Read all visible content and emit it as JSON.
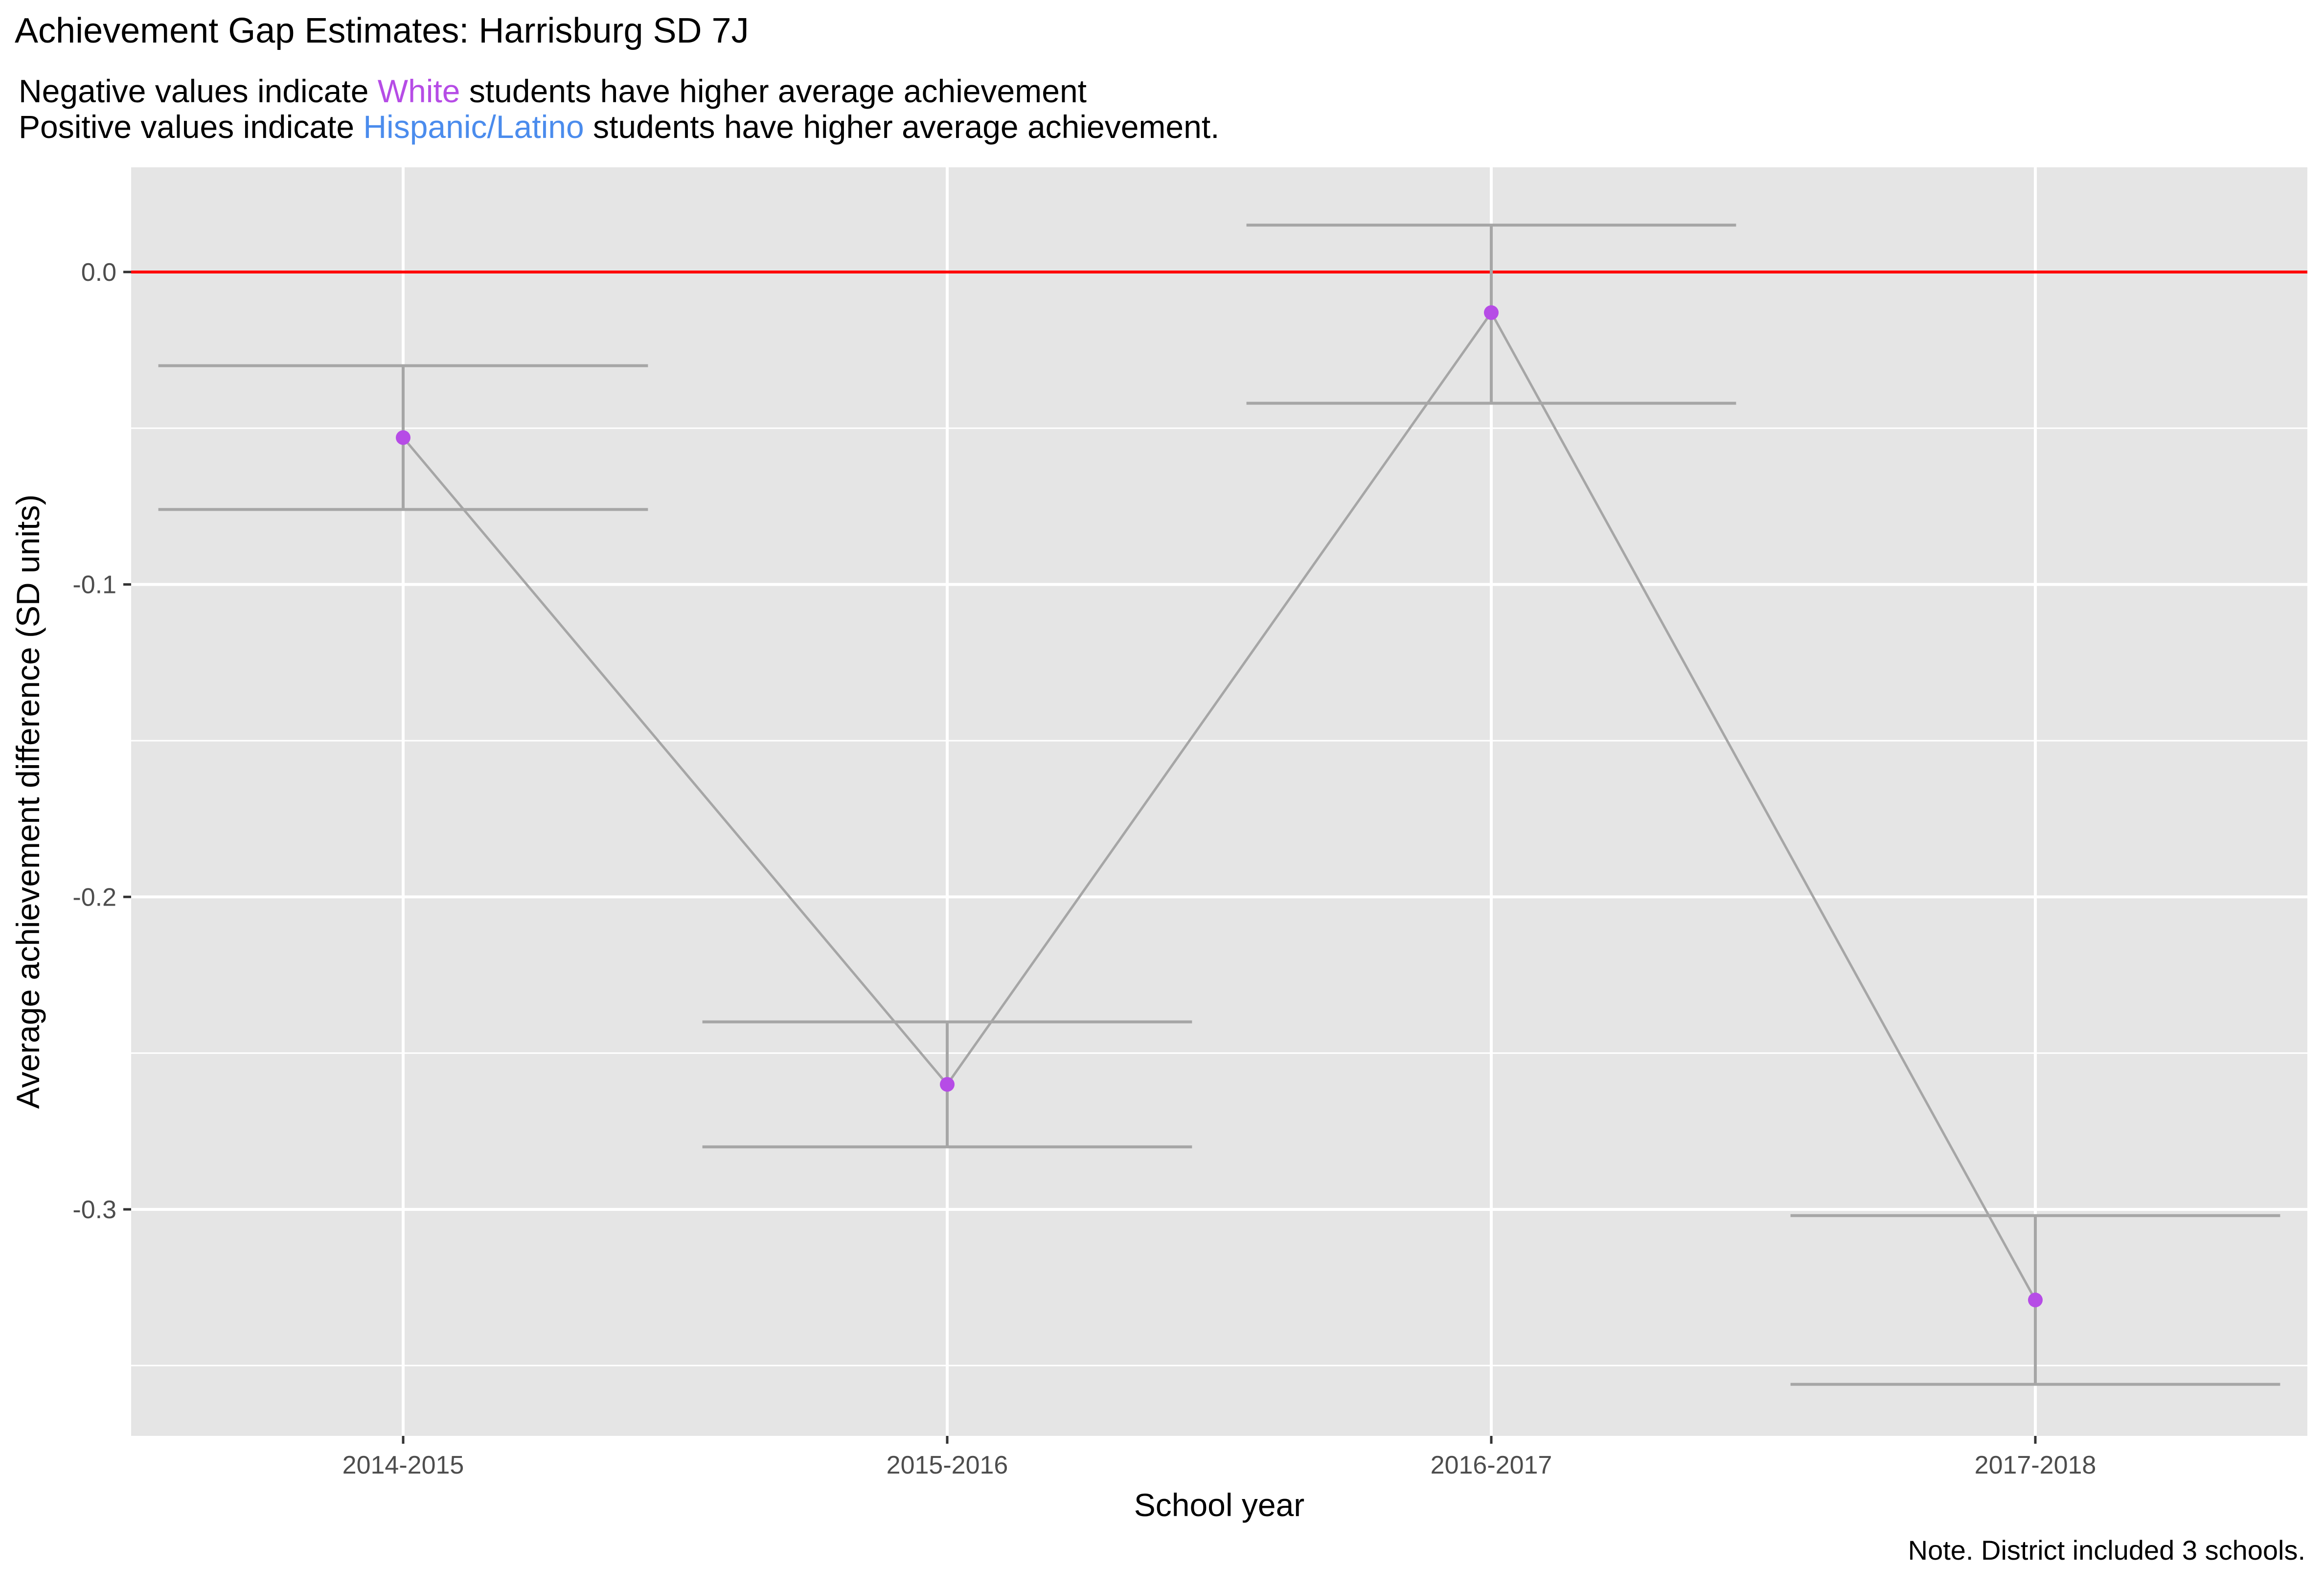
{
  "colors": {
    "panel_background": "#e5e5e5",
    "grid": "#ffffff",
    "reference_line": "#ff0000",
    "connector": "#a6a6a6",
    "errorbar": "#a6a6a6",
    "point": "#b64ce6",
    "white_highlight": "#b64ce6",
    "hispanic_highlight": "#4b8ced"
  },
  "chart_data": {
    "type": "line",
    "title": "Achievement Gap Estimates: Harrisburg SD 7J",
    "subtitle": {
      "line1": {
        "prefix": "Negative values indicate ",
        "highlight": "White",
        "suffix": " students have higher average achievement"
      },
      "line2": {
        "prefix": "Positive values indicate ",
        "highlight": "Hispanic/Latino",
        "suffix": " students have higher average achievement."
      }
    },
    "caption": "Note. District included 3 schools.",
    "xlabel": "School year",
    "ylabel": "Average achievement difference (SD units)",
    "categories": [
      "2014-2015",
      "2015-2016",
      "2016-2017",
      "2017-2018"
    ],
    "series": [
      {
        "values": [
          -0.053,
          -0.26,
          -0.013,
          -0.329
        ],
        "lower": [
          -0.076,
          -0.28,
          -0.042,
          -0.356
        ],
        "upper": [
          -0.03,
          -0.24,
          0.015,
          -0.302
        ]
      }
    ],
    "reference_line": 0,
    "ylim": [
      -0.3725,
      0.0335
    ],
    "yticks": [
      0.0,
      -0.1,
      -0.2,
      -0.3
    ],
    "ytick_labels": [
      "0.0",
      "-0.1",
      "-0.2",
      "-0.3"
    ],
    "grid": true,
    "legend": "none"
  }
}
